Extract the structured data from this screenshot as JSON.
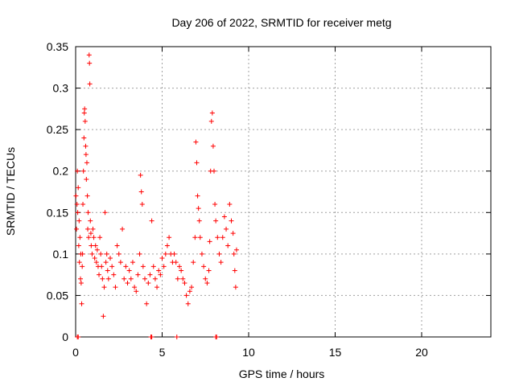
{
  "chart_data": {
    "type": "scatter",
    "title": "Day 206 of 2022, SRMTID for receiver metg",
    "xlabel": "GPS time / hours",
    "ylabel": "SRMTID / TECUs",
    "xlim": [
      0,
      24
    ],
    "ylim": [
      0,
      0.35
    ],
    "grid": true,
    "x_ticks": [
      0,
      5,
      10,
      15,
      20
    ],
    "x_tick_labels": [
      "0",
      "5",
      "10",
      "15",
      "20"
    ],
    "y_ticks": [
      0,
      0.05,
      0.1,
      0.15,
      0.2,
      0.25,
      0.3,
      0.35
    ],
    "y_tick_labels": [
      "0",
      "0.05",
      "0.1",
      "0.15",
      "0.2",
      "0.25",
      "0.3",
      "0.35"
    ],
    "marker": "+",
    "series": [
      {
        "name": "SRMTID",
        "color": "#ff0000",
        "points": [
          [
            0.02,
            0.17
          ],
          [
            0.05,
            0.13
          ],
          [
            0.08,
            0.16
          ],
          [
            0.1,
            0.2
          ],
          [
            0.12,
            0.15
          ],
          [
            0.15,
            0.18
          ],
          [
            0.18,
            0.11
          ],
          [
            0.2,
            0.14
          ],
          [
            0.22,
            0.09
          ],
          [
            0.25,
            0.12
          ],
          [
            0.28,
            0.07
          ],
          [
            0.3,
            0.1
          ],
          [
            0.32,
            0.065
          ],
          [
            0.35,
            0.04
          ],
          [
            0.38,
            0.085
          ],
          [
            0.4,
            0.1
          ],
          [
            0.42,
            0.16
          ],
          [
            0.45,
            0.2
          ],
          [
            0.48,
            0.24
          ],
          [
            0.5,
            0.27
          ],
          [
            0.52,
            0.275
          ],
          [
            0.55,
            0.26
          ],
          [
            0.58,
            0.23
          ],
          [
            0.6,
            0.22
          ],
          [
            0.62,
            0.19
          ],
          [
            0.65,
            0.21
          ],
          [
            0.68,
            0.17
          ],
          [
            0.7,
            0.13
          ],
          [
            0.72,
            0.15
          ],
          [
            0.75,
            0.12
          ],
          [
            0.78,
            0.34
          ],
          [
            0.8,
            0.33
          ],
          [
            0.82,
            0.305
          ],
          [
            0.85,
            0.14
          ],
          [
            0.88,
            0.125
          ],
          [
            0.9,
            0.11
          ],
          [
            0.95,
            0.1
          ],
          [
            1.0,
            0.13
          ],
          [
            1.05,
            0.12
          ],
          [
            1.1,
            0.095
          ],
          [
            1.15,
            0.11
          ],
          [
            1.2,
            0.09
          ],
          [
            1.25,
            0.105
          ],
          [
            1.3,
            0.085
          ],
          [
            1.35,
            0.075
          ],
          [
            1.4,
            0.12
          ],
          [
            1.45,
            0.1
          ],
          [
            1.5,
            0.085
          ],
          [
            1.55,
            0.07
          ],
          [
            1.6,
            0.025
          ],
          [
            1.65,
            0.06
          ],
          [
            1.7,
            0.15
          ],
          [
            1.75,
            0.09
          ],
          [
            1.8,
            0.1
          ],
          [
            1.85,
            0.08
          ],
          [
            1.9,
            0.07
          ],
          [
            2.0,
            0.095
          ],
          [
            2.1,
            0.085
          ],
          [
            2.2,
            0.075
          ],
          [
            2.3,
            0.06
          ],
          [
            2.4,
            0.11
          ],
          [
            2.5,
            0.1
          ],
          [
            2.6,
            0.09
          ],
          [
            2.7,
            0.13
          ],
          [
            2.8,
            0.07
          ],
          [
            2.9,
            0.085
          ],
          [
            3.0,
            0.065
          ],
          [
            3.1,
            0.08
          ],
          [
            3.2,
            0.07
          ],
          [
            3.3,
            0.09
          ],
          [
            3.4,
            0.06
          ],
          [
            3.5,
            0.055
          ],
          [
            3.6,
            0.075
          ],
          [
            3.7,
            0.1
          ],
          [
            3.75,
            0.195
          ],
          [
            3.8,
            0.175
          ],
          [
            3.85,
            0.16
          ],
          [
            3.9,
            0.085
          ],
          [
            4.0,
            0.07
          ],
          [
            4.1,
            0.04
          ],
          [
            4.2,
            0.065
          ],
          [
            4.3,
            0.075
          ],
          [
            4.4,
            0.14
          ],
          [
            4.5,
            0.085
          ],
          [
            4.6,
            0.07
          ],
          [
            4.7,
            0.06
          ],
          [
            4.8,
            0.08
          ],
          [
            4.9,
            0.075
          ],
          [
            5.0,
            0.095
          ],
          [
            5.1,
            0.085
          ],
          [
            5.2,
            0.1
          ],
          [
            5.3,
            0.11
          ],
          [
            5.4,
            0.12
          ],
          [
            5.5,
            0.1
          ],
          [
            5.6,
            0.09
          ],
          [
            5.7,
            0.1
          ],
          [
            5.8,
            0.09
          ],
          [
            5.9,
            0.07
          ],
          [
            6.0,
            0.085
          ],
          [
            6.1,
            0.08
          ],
          [
            6.2,
            0.07
          ],
          [
            6.3,
            0.065
          ],
          [
            6.4,
            0.05
          ],
          [
            6.5,
            0.04
          ],
          [
            6.6,
            0.055
          ],
          [
            6.7,
            0.06
          ],
          [
            6.8,
            0.09
          ],
          [
            6.9,
            0.12
          ],
          [
            6.95,
            0.235
          ],
          [
            7.0,
            0.21
          ],
          [
            7.05,
            0.17
          ],
          [
            7.1,
            0.155
          ],
          [
            7.15,
            0.14
          ],
          [
            7.2,
            0.12
          ],
          [
            7.3,
            0.1
          ],
          [
            7.4,
            0.085
          ],
          [
            7.5,
            0.07
          ],
          [
            7.6,
            0.065
          ],
          [
            7.7,
            0.08
          ],
          [
            7.75,
            0.115
          ],
          [
            7.8,
            0.2
          ],
          [
            7.85,
            0.26
          ],
          [
            7.9,
            0.27
          ],
          [
            7.95,
            0.23
          ],
          [
            8.0,
            0.2
          ],
          [
            8.05,
            0.16
          ],
          [
            8.1,
            0.14
          ],
          [
            8.2,
            0.12
          ],
          [
            8.3,
            0.1
          ],
          [
            8.4,
            0.09
          ],
          [
            8.5,
            0.12
          ],
          [
            8.6,
            0.145
          ],
          [
            8.7,
            0.13
          ],
          [
            8.8,
            0.11
          ],
          [
            8.9,
            0.16
          ],
          [
            9.0,
            0.14
          ],
          [
            9.1,
            0.125
          ],
          [
            9.15,
            0.1
          ],
          [
            9.2,
            0.08
          ],
          [
            9.25,
            0.06
          ],
          [
            9.3,
            0.105
          ],
          [
            0.1,
            0.0
          ],
          [
            4.35,
            0.0
          ],
          [
            5.85,
            0.0
          ],
          [
            8.1,
            0.0
          ],
          [
            8.15,
            0.0
          ],
          [
            4.4,
            0.0
          ],
          [
            0.15,
            0.0
          ]
        ]
      }
    ]
  }
}
